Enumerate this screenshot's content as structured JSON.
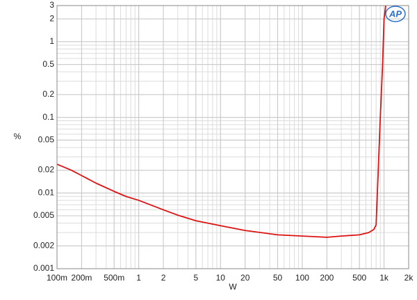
{
  "chart_data": {
    "type": "line",
    "y_label": "%",
    "x_label": "W",
    "logo": "AP",
    "x": [
      0.1,
      0.15,
      0.2,
      0.3,
      0.5,
      0.7,
      1,
      2,
      3,
      5,
      10,
      20,
      50,
      100,
      200,
      300,
      500,
      650,
      750,
      800,
      900,
      960,
      1000,
      1050
    ],
    "values": [
      0.024,
      0.02,
      0.017,
      0.0135,
      0.0105,
      0.009,
      0.008,
      0.006,
      0.0051,
      0.0043,
      0.0037,
      0.0032,
      0.0028,
      0.0027,
      0.0026,
      0.0027,
      0.0028,
      0.003,
      0.0033,
      0.0038,
      0.1,
      0.5,
      2,
      3
    ],
    "color": "#dd1111",
    "xlim": [
      0.1,
      2000
    ],
    "ylim": [
      0.001,
      3
    ],
    "xticks": [
      {
        "value": 0.1,
        "label": "100m"
      },
      {
        "value": 0.2,
        "label": "200m"
      },
      {
        "value": 0.5,
        "label": "500m"
      },
      1,
      2,
      5,
      10,
      20,
      50,
      100,
      200,
      500,
      {
        "value": 1000,
        "label": "1k"
      },
      {
        "value": 2000,
        "label": "2k"
      }
    ],
    "yticks": [
      0.001,
      0.002,
      0.005,
      0.01,
      0.02,
      0.05,
      0.1,
      0.2,
      0.5,
      1,
      2,
      3
    ],
    "log_x": true,
    "log_y": true,
    "grid": true,
    "minor_grid": true
  }
}
